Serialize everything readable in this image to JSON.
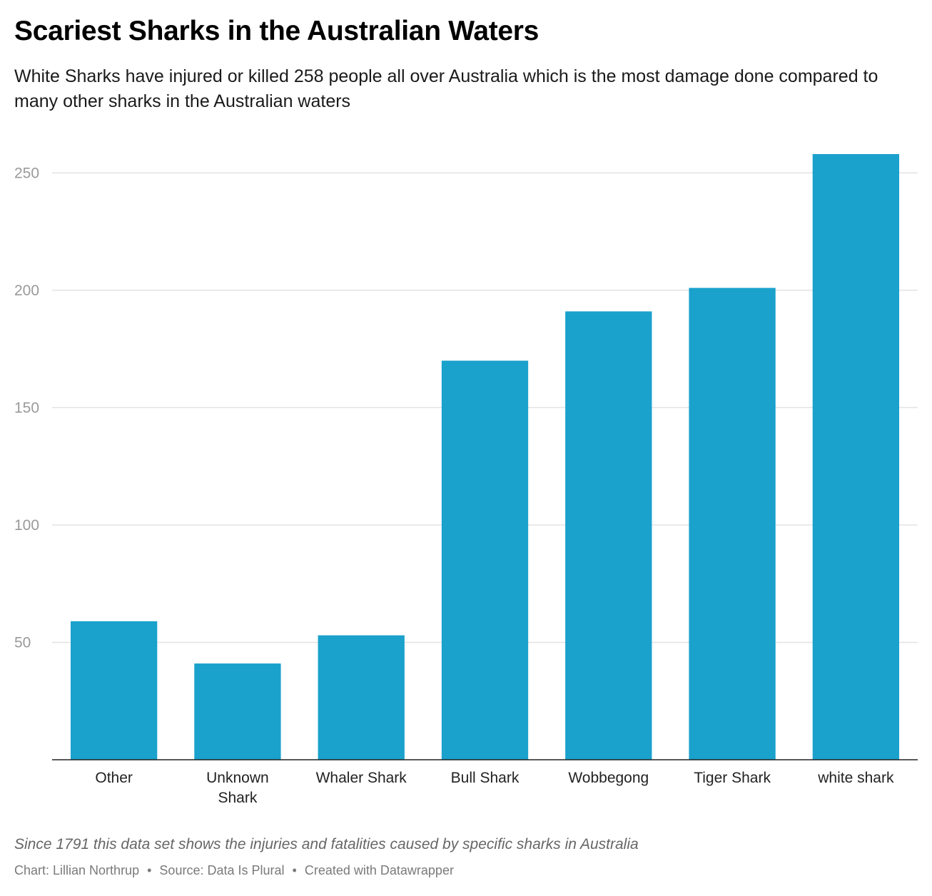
{
  "header": {
    "title": "Scariest Sharks in the Australian Waters",
    "subtitle": "White Sharks have injured or killed 258 people all over Australia which is the most damage done compared to many other sharks in the Australian waters"
  },
  "chart_data": {
    "type": "bar",
    "categories": [
      [
        "Other"
      ],
      [
        "Unknown",
        "Shark"
      ],
      [
        "Whaler Shark"
      ],
      [
        "Bull Shark"
      ],
      [
        "Wobbegong"
      ],
      [
        "Tiger Shark"
      ],
      [
        "white shark"
      ]
    ],
    "values": [
      59,
      41,
      53,
      170,
      191,
      201,
      258
    ],
    "ylim": [
      0,
      258
    ],
    "yticks": [
      50,
      100,
      150,
      200,
      250
    ],
    "grid": true,
    "bar_color": "#1aa1cc",
    "gridline_color": "#e2e2e2",
    "xlabel": "",
    "ylabel": ""
  },
  "footer": {
    "notes": "Since 1791 this data set shows the injuries and fatalities caused by specific sharks in Australia",
    "credit": "Chart: Lillian Northrup",
    "source": "Source: Data Is Plural",
    "tool": "Created with Datawrapper",
    "separator": "•"
  }
}
